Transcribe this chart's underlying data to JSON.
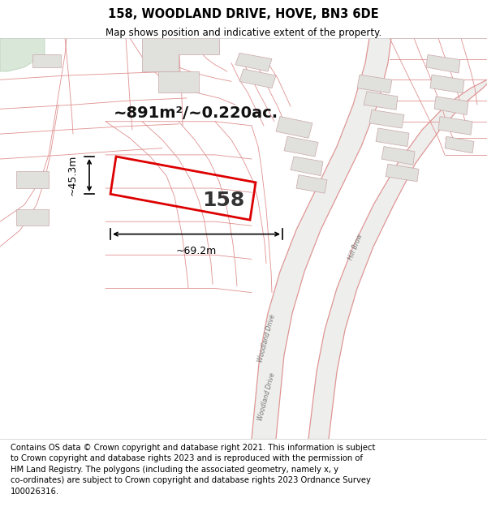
{
  "title": "158, WOODLAND DRIVE, HOVE, BN3 6DE",
  "subtitle": "Map shows position and indicative extent of the property.",
  "footer": "Contains OS data © Crown copyright and database right 2021. This information is subject\nto Crown copyright and database rights 2023 and is reproduced with the permission of\nHM Land Registry. The polygons (including the associated geometry, namely x, y\nco-ordinates) are subject to Crown copyright and database rights 2023 Ordnance Survey\n100026316.",
  "area_text": "~891m²/~0.220ac.",
  "property_label": "158",
  "dim_width": "~69.2m",
  "dim_height": "~45.3m",
  "map_bg": "#f9f9f6",
  "property_edge_color": "#dd0000",
  "road_color": "#e09090",
  "road_lw": 0.8,
  "road_gray": "#aaaaaa",
  "building_fill": "#e0e0dc",
  "building_edge": "#c8a8a8",
  "green_color": "#c8ddc8",
  "title_fontsize": 10.5,
  "subtitle_fontsize": 8.5,
  "footer_fontsize": 7.2,
  "area_fontsize": 14,
  "label_fontsize": 18,
  "dim_fontsize": 9
}
